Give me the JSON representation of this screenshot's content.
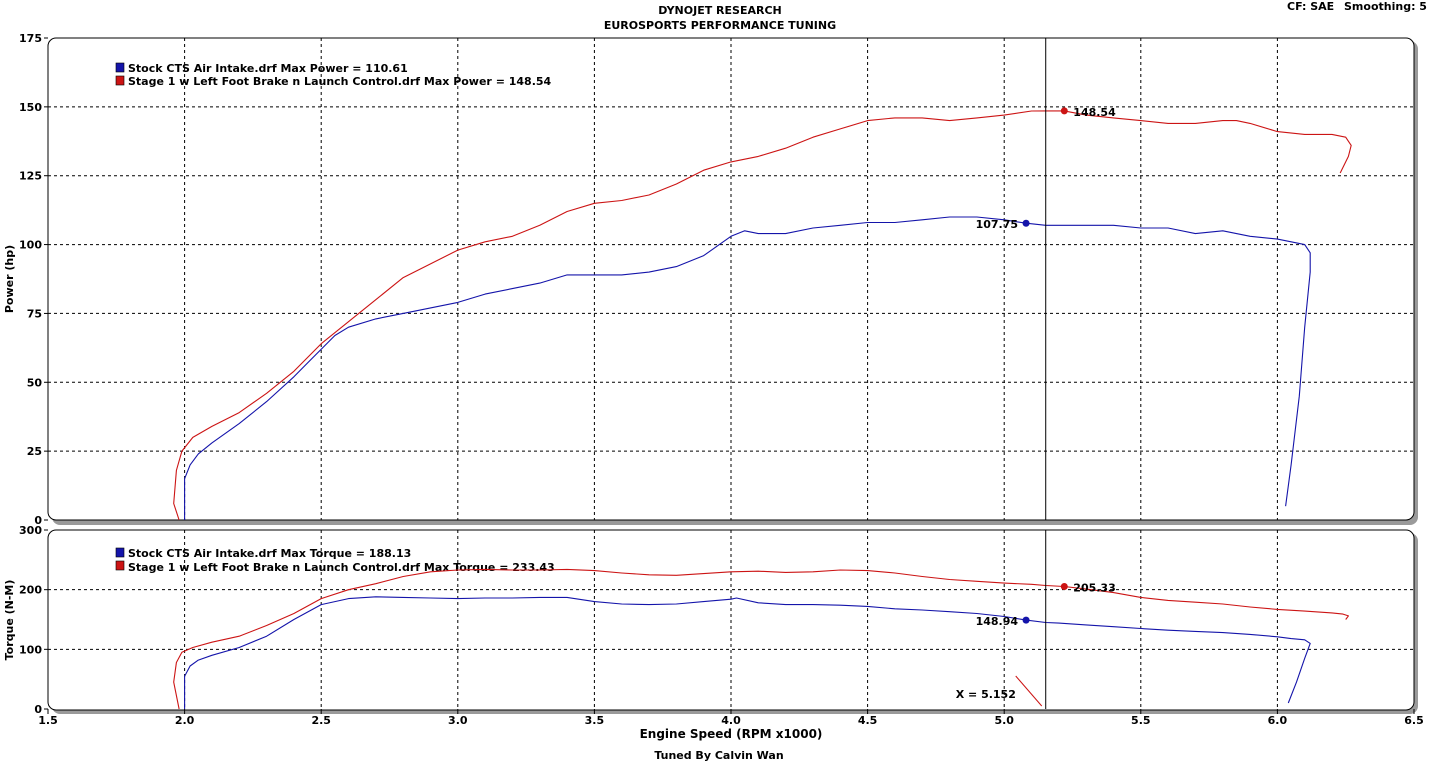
{
  "header": {
    "title": "DYNOJET RESEARCH",
    "subtitle": "EUROSPORTS PERFORMANCE TUNING",
    "cf": "CF: SAE",
    "smoothing": "Smoothing: 5",
    "footer": "Tuned By Calvin Wan"
  },
  "colors": {
    "stock": "#1414aa",
    "stage1": "#cc1414",
    "grid": "#000000",
    "frame": "#000000"
  },
  "chart_data": [
    {
      "type": "line",
      "title": "DYNOJET RESEARCH",
      "subtitle": "EUROSPORTS PERFORMANCE TUNING",
      "ylabel": "Power (hp)",
      "xlabel": "Engine Speed (RPM x1000)",
      "xlim": [
        1.5,
        6.5
      ],
      "ylim": [
        0,
        175
      ],
      "yticks": [
        "0",
        "25",
        "50",
        "75",
        "100",
        "125",
        "150",
        "175"
      ],
      "grid": true,
      "legend": [
        "Stock CTS Air Intake.drf Max Power = 110.61",
        "Stage 1 w Left Foot Brake n Launch Control.drf Max Power = 148.54"
      ],
      "cursor_x": 5.152,
      "series": [
        {
          "name": "Stock CTS Air Intake.drf",
          "x": [
            2.0,
            2.0,
            2.02,
            2.05,
            2.1,
            2.2,
            2.3,
            2.4,
            2.45,
            2.5,
            2.55,
            2.6,
            2.7,
            2.8,
            2.9,
            3.0,
            3.1,
            3.2,
            3.3,
            3.4,
            3.5,
            3.6,
            3.7,
            3.8,
            3.9,
            4.0,
            4.05,
            4.1,
            4.2,
            4.3,
            4.4,
            4.5,
            4.6,
            4.7,
            4.8,
            4.9,
            5.0,
            5.08,
            5.152,
            5.2,
            5.3,
            5.4,
            5.5,
            5.6,
            5.7,
            5.8,
            5.9,
            6.0,
            6.05,
            6.1,
            6.12,
            6.12,
            6.1,
            6.08,
            6.05,
            6.03
          ],
          "y": [
            0,
            15,
            20,
            24,
            28,
            35,
            43,
            52,
            57,
            62,
            67,
            70,
            73,
            75,
            77,
            79,
            82,
            84,
            86,
            89,
            89,
            89,
            90,
            92,
            96,
            103,
            105,
            104,
            104,
            106,
            107,
            108,
            108,
            109,
            110,
            110,
            109,
            107.75,
            107,
            107,
            107,
            107,
            106,
            106,
            104,
            105,
            103,
            102,
            101,
            100,
            97,
            90,
            70,
            45,
            20,
            5
          ],
          "marker": {
            "x": 5.08,
            "y": 107.75,
            "label": "107.75"
          }
        },
        {
          "name": "Stage 1 w Left Foot Brake n Launch Control.drf",
          "x": [
            1.98,
            1.96,
            1.97,
            1.99,
            2.03,
            2.1,
            2.2,
            2.3,
            2.4,
            2.5,
            2.6,
            2.7,
            2.8,
            2.9,
            3.0,
            3.1,
            3.2,
            3.3,
            3.4,
            3.5,
            3.6,
            3.7,
            3.8,
            3.9,
            4.0,
            4.1,
            4.2,
            4.3,
            4.4,
            4.5,
            4.6,
            4.7,
            4.8,
            4.9,
            5.0,
            5.1,
            5.15,
            5.22,
            5.3,
            5.4,
            5.5,
            5.6,
            5.7,
            5.8,
            5.85,
            5.9,
            6.0,
            6.1,
            6.2,
            6.25,
            6.27,
            6.26,
            6.23
          ],
          "y": [
            0,
            6,
            18,
            25,
            30,
            34,
            39,
            46,
            54,
            64,
            72,
            80,
            88,
            93,
            98,
            101,
            103,
            107,
            112,
            115,
            116,
            118,
            122,
            127,
            130,
            132,
            135,
            139,
            142,
            145,
            146,
            146,
            145,
            146,
            147,
            148.5,
            148.54,
            148.54,
            147,
            146,
            145,
            144,
            144,
            145,
            145,
            144,
            141,
            140,
            140,
            139,
            136,
            132,
            126
          ],
          "marker": {
            "x": 5.22,
            "y": 148.54,
            "label": "148.54"
          }
        }
      ]
    },
    {
      "type": "line",
      "ylabel": "Torque (N-M)",
      "xlabel": "Engine Speed (RPM x1000)",
      "xlim": [
        1.5,
        6.5
      ],
      "ylim": [
        0,
        300
      ],
      "yticks": [
        "0",
        "100",
        "200",
        "300"
      ],
      "xticks": [
        "1.5",
        "2.0",
        "2.5",
        "3.0",
        "3.5",
        "4.0",
        "4.5",
        "5.0",
        "5.5",
        "6.0",
        "6.5"
      ],
      "grid": true,
      "legend": [
        "Stock CTS Air Intake.drf Max Torque = 188.13",
        "Stage 1 w Left Foot Brake n Launch Control.drf Max Torque = 233.43"
      ],
      "cursor_x": 5.152,
      "cursor_label": "X = 5.152",
      "series": [
        {
          "name": "Stock CTS Air Intake.drf",
          "x": [
            2.0,
            2.0,
            2.02,
            2.05,
            2.1,
            2.2,
            2.3,
            2.4,
            2.5,
            2.6,
            2.7,
            2.8,
            2.9,
            3.0,
            3.1,
            3.2,
            3.3,
            3.4,
            3.5,
            3.6,
            3.7,
            3.8,
            3.9,
            4.0,
            4.02,
            4.1,
            4.2,
            4.3,
            4.4,
            4.5,
            4.6,
            4.7,
            4.8,
            4.9,
            5.0,
            5.08,
            5.152,
            5.2,
            5.3,
            5.4,
            5.5,
            5.6,
            5.7,
            5.8,
            5.9,
            6.0,
            6.05,
            6.1,
            6.12,
            6.1,
            6.07,
            6.04
          ],
          "y": [
            0,
            55,
            72,
            82,
            90,
            103,
            122,
            150,
            175,
            185,
            188,
            187,
            186,
            185,
            186,
            186,
            187,
            187,
            180,
            176,
            175,
            176,
            180,
            184,
            186,
            178,
            175,
            175,
            174,
            172,
            168,
            166,
            163,
            160,
            155,
            148.94,
            145,
            144,
            141,
            138,
            135,
            132,
            130,
            128,
            125,
            121,
            118,
            116,
            110,
            85,
            45,
            10
          ],
          "marker": {
            "x": 5.08,
            "y": 148.94,
            "label": "148.94"
          }
        },
        {
          "name": "Stage 1 w Left Foot Brake n Launch Control.drf",
          "x": [
            1.98,
            1.96,
            1.97,
            1.99,
            2.03,
            2.1,
            2.2,
            2.3,
            2.4,
            2.5,
            2.6,
            2.7,
            2.8,
            2.9,
            3.0,
            3.1,
            3.2,
            3.3,
            3.4,
            3.5,
            3.6,
            3.7,
            3.8,
            3.9,
            4.0,
            4.1,
            4.2,
            4.3,
            4.4,
            4.5,
            4.6,
            4.7,
            4.8,
            4.9,
            5.0,
            5.1,
            5.152,
            5.22,
            5.3,
            5.4,
            5.5,
            5.6,
            5.7,
            5.8,
            5.9,
            6.0,
            6.1,
            6.2,
            6.24,
            6.26,
            6.25
          ],
          "y": [
            0,
            45,
            78,
            95,
            103,
            112,
            122,
            140,
            160,
            185,
            200,
            210,
            222,
            230,
            233,
            234,
            233,
            233,
            234,
            232,
            228,
            225,
            224,
            227,
            230,
            231,
            229,
            230,
            233,
            232,
            228,
            222,
            217,
            214,
            211,
            209,
            207,
            205.33,
            201,
            195,
            187,
            182,
            179,
            176,
            171,
            167,
            164,
            161,
            159,
            156,
            150
          ],
          "marker": {
            "x": 5.22,
            "y": 205.33,
            "label": "205.33"
          }
        }
      ]
    }
  ]
}
